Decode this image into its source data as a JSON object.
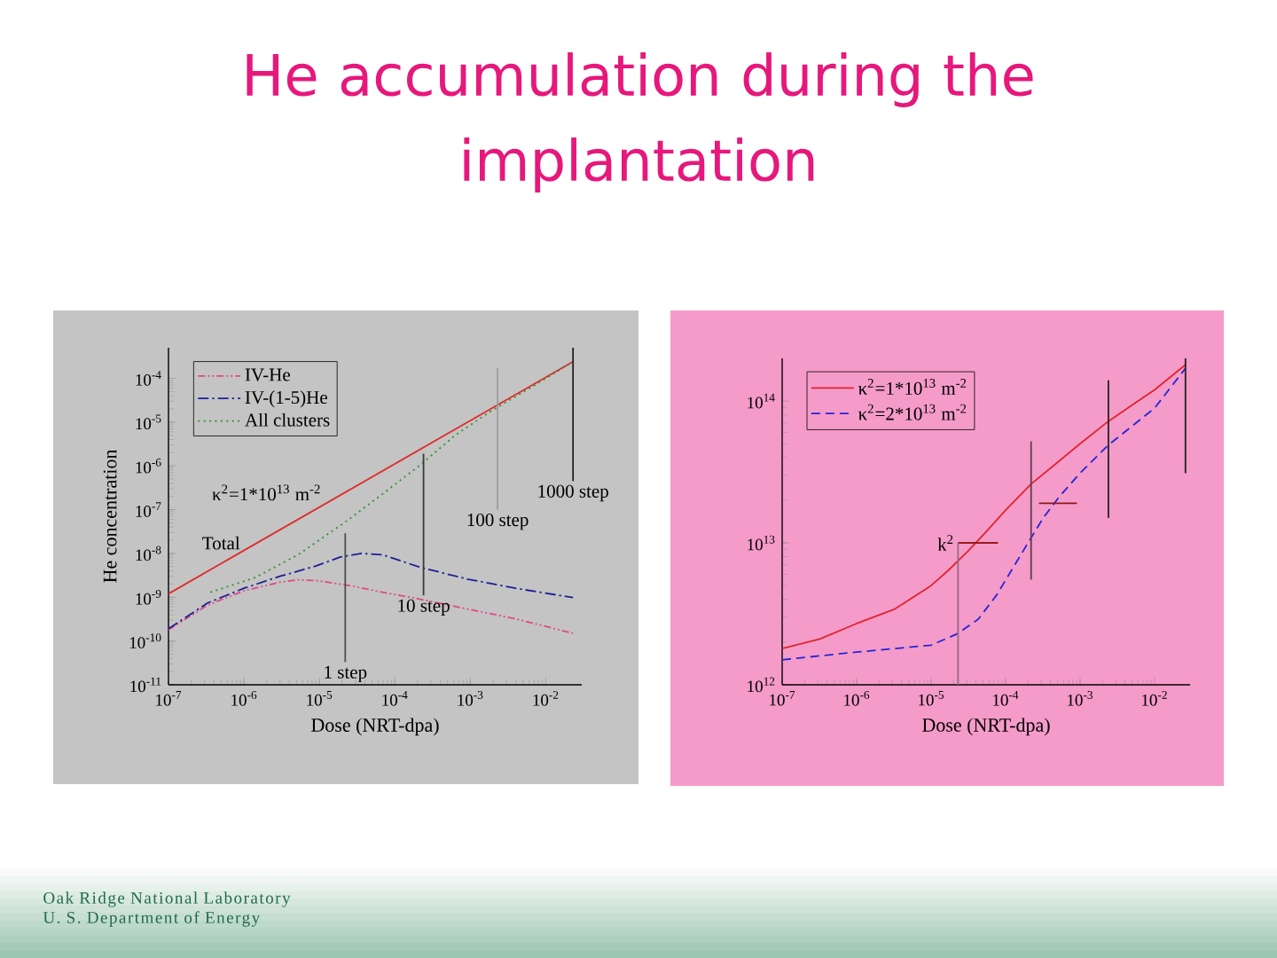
{
  "chart_data": [
    {
      "type": "other",
      "title": "He accumulation during the implantation",
      "annotations": [
        "Oak Ridge National Laboratory",
        "U. S. Department of Energy"
      ]
    },
    {
      "type": "line",
      "xlabel": "Dose (NRT-dpa)",
      "ylabel": "He concentration",
      "log": "xy",
      "xlim": [
        1e-07,
        0.03
      ],
      "ylim": [
        1e-11,
        0.0005
      ],
      "xticks": [
        {
          "value": 1e-07,
          "label": "10$^{-7}$"
        },
        {
          "value": 1e-06,
          "label": "10$^{-6}$"
        },
        {
          "value": 1e-05,
          "label": "10$^{-5}$"
        },
        {
          "value": 0.0001,
          "label": "10$^{-4}$"
        },
        {
          "value": 0.001,
          "label": "10$^{-3}$"
        },
        {
          "value": 0.01,
          "label": "10$^{-2}$"
        }
      ],
      "yticks": [
        {
          "value": 1e-11,
          "label": "10$^{-11}$"
        },
        {
          "value": 1e-10,
          "label": "10$^{-10}$"
        },
        {
          "value": 1e-09,
          "label": "10$^{-9}$"
        },
        {
          "value": 1e-08,
          "label": "10$^{-8}$"
        },
        {
          "value": 1e-07,
          "label": "10$^{-7}$"
        },
        {
          "value": 1e-06,
          "label": "10$^{-6}$"
        },
        {
          "value": 1e-05,
          "label": "10$^{-5}$"
        },
        {
          "value": 0.0001,
          "label": "10$^{-4}$"
        }
      ],
      "legend": "top left",
      "series": [
        {
          "color": "#e02a2a",
          "line_style": "solid",
          "x": [
            1e-07,
            0.023
          ],
          "values": [
            1.2e-09,
            0.00024
          ]
        },
        {
          "name": "IV-He",
          "color": "#e04a86",
          "line_style": "dashdotdot",
          "x": [
            1e-07,
            3.3e-07,
            1e-06,
            3e-06,
            5.2e-06,
            9.1e-06,
            2.3e-05,
            6.9e-05,
            0.00021,
            0.00091,
            0.004,
            0.023
          ],
          "values": [
            1.8e-10,
            6.6e-10,
            1.4e-09,
            2.2e-09,
            2.5e-09,
            2.4e-09,
            1.9e-09,
            1.3e-09,
            9.1e-10,
            5.4e-10,
            3.2e-10,
            1.5e-10
          ]
        },
        {
          "name": "IV-(1-5)He",
          "color": "#1e1e96",
          "line_style": "dashdot",
          "x": [
            1e-07,
            3.3e-07,
            1e-06,
            3e-06,
            9.1e-06,
            1.9e-05,
            3.6e-05,
            6.9e-05,
            0.00021,
            0.00091,
            0.004,
            0.023
          ],
          "values": [
            1.9e-10,
            7.4e-10,
            1.6e-09,
            3e-09,
            5.2e-09,
            8.3e-09,
            1e-08,
            9.3e-09,
            4.9e-09,
            2.6e-09,
            1.6e-09,
            9.8e-10
          ]
        },
        {
          "name": "All clusters",
          "color": "#2f8f2f",
          "line_style": "dotted",
          "x": [
            3.6e-07,
            1.4e-06,
            5.2e-06,
            2.3e-05,
            6.9e-05,
            0.00021,
            0.00063,
            0.0019,
            0.0058,
            0.023
          ],
          "values": [
            1.3e-09,
            2.8e-09,
            9.3e-09,
            5.5e-08,
            2.3e-07,
            1e-06,
            5e-06,
            1.8e-05,
            5.6e-05,
            0.00024
          ]
        },
        {
          "color": "#505050",
          "x": [
            2.2e-05,
            2.2e-05
          ],
          "values": [
            3.3e-11,
            2.9e-08
          ]
        },
        {
          "color": "#3a3a3a",
          "x": [
            0.00024,
            0.00024
          ],
          "values": [
            1.1e-09,
            1.9e-06
          ]
        },
        {
          "color": "#9c9c9c",
          "x": [
            0.0023,
            0.0023
          ],
          "values": [
            1e-07,
            0.00017
          ]
        },
        {
          "color": "#202020",
          "x": [
            0.023,
            0.023
          ],
          "values": [
            4.5e-07,
            0.0005
          ]
        }
      ],
      "annotations": [
        {
          "text": "Total",
          "x": 1e-06,
          "y": 1e-08
        },
        "κ$^{2}$=1*10$^{13}$ m$^{-2}$",
        {
          "text": "1 step",
          "x": 2.2e-05,
          "y": 3.3e-11
        },
        {
          "text": "10 step",
          "x": 0.00024,
          "y": 1.1e-09
        },
        {
          "text": "100 step",
          "x": 0.0023,
          "y": 1e-07
        },
        {
          "text": "1000 step",
          "x": 0.023,
          "y": 4.5e-07
        }
      ]
    },
    {
      "type": "line",
      "xlabel": "Dose (NRT-dpa)",
      "log": "xy",
      "xlim": [
        1e-07,
        0.03
      ],
      "ylim": [
        1000000000000.0,
        200000000000000.0
      ],
      "xticks": [
        {
          "value": 1e-07,
          "label": "10$^{-7}$"
        },
        {
          "value": 1e-06,
          "label": "10$^{-6}$"
        },
        {
          "value": 1e-05,
          "label": "10$^{-5}$"
        },
        {
          "value": 0.0001,
          "label": "10$^{-4}$"
        },
        {
          "value": 0.001,
          "label": "10$^{-3}$"
        },
        {
          "value": 0.01,
          "label": "10$^{-2}$"
        }
      ],
      "yticks": [
        {
          "value": 1000000000000.0,
          "label": "10$^{12}$"
        },
        {
          "value": 10000000000000.0,
          "label": "10$^{13}$"
        },
        {
          "value": 100000000000000.0,
          "label": "10$^{14}$"
        }
      ],
      "legend": "top left",
      "series": [
        {
          "name": "κ$^{2}$=1*10$^{13}$ m$^{-2}$",
          "color": "#e0242e",
          "line_style": "solid",
          "x": [
            1e-07,
            3.2e-07,
            1e-06,
            3.2e-06,
            1e-05,
            1.7e-05,
            3.1e-05,
            5.5e-05,
            0.0001,
            0.00022,
            0.00047,
            0.001,
            0.0024,
            0.01,
            0.026
          ],
          "values": [
            1800000000000.0,
            2100000000000.0,
            2700000000000.0,
            3400000000000.0,
            5000000000000.0,
            6400000000000.0,
            8700000000000.0,
            12000000000000.0,
            17000000000000.0,
            26000000000000.0,
            36000000000000.0,
            50000000000000.0,
            72000000000000.0,
            120000000000000.0,
            180000000000000.0
          ]
        },
        {
          "name": "κ$^{2}$=2*10$^{13}$ m$^{-2}$",
          "color": "#2424d8",
          "line_style": "dashed",
          "x": [
            1e-07,
            1e-06,
            1e-05,
            2.3e-05,
            4.3e-05,
            7.6e-05,
            0.00012,
            0.0002,
            0.00032,
            0.00052,
            0.001,
            0.0024,
            0.01,
            0.026
          ],
          "values": [
            1500000000000.0,
            1700000000000.0,
            1900000000000.0,
            2300000000000.0,
            2900000000000.0,
            4300000000000.0,
            6400000000000.0,
            10000000000000.0,
            15000000000000.0,
            21000000000000.0,
            31000000000000.0,
            49000000000000.0,
            89000000000000.0,
            170000000000000.0
          ]
        },
        {
          "color": "#9a1a1a",
          "x": [
            2.3e-05,
            7.9e-05
          ],
          "values": [
            10000000000000.0,
            10000000000000.0
          ]
        },
        {
          "color": "#8a1a1a",
          "x": [
            0.00028,
            0.00091
          ],
          "values": [
            19000000000000.0,
            19000000000000.0
          ]
        },
        {
          "color": "#9a6a80",
          "x": [
            2.3e-05,
            2.3e-05
          ],
          "values": [
            1000000000000.0,
            10000000000000.0
          ]
        },
        {
          "color": "#5a4050",
          "x": [
            0.00022,
            0.00022
          ],
          "values": [
            5500000000000.0,
            52000000000000.0
          ]
        },
        {
          "color": "#202020",
          "x": [
            0.0024,
            0.0024
          ],
          "values": [
            15000000000000.0,
            140000000000000.0
          ]
        },
        {
          "color": "#202020",
          "x": [
            0.026,
            0.026
          ],
          "values": [
            31000000000000.0,
            200000000000000.0
          ]
        }
      ],
      "annotations": [
        {
          "text": "k$^{2}$",
          "x": 2.3e-05,
          "y": 10000000000000.0
        }
      ]
    }
  ]
}
